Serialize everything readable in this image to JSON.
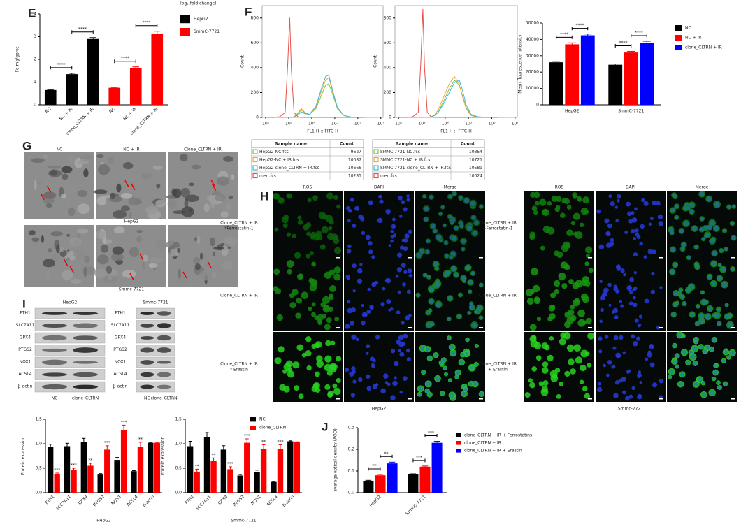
{
  "panel_letters": [
    "E",
    "F",
    "G",
    "H",
    "I",
    "J"
  ],
  "chart_data": [
    {
      "type": "bar",
      "note": "log₂(fold change)",
      "ylabel": "Fe mg/gprot",
      "categories": [
        "NC",
        "NC + IR",
        "clone_CLTRN + IR",
        "NC",
        "NC + IR",
        "clone_CLTRN + IR"
      ],
      "series": [
        {
          "name": "HepG2",
          "color": "#000000",
          "values": [
            0.65,
            1.35,
            2.9,
            null,
            null,
            null
          ],
          "errors": [
            0.02,
            0.04,
            0.06,
            null,
            null,
            null
          ]
        },
        {
          "name": "SmmC-7721",
          "color": "#ff0000",
          "values": [
            null,
            null,
            null,
            0.75,
            1.62,
            3.12
          ],
          "errors": [
            null,
            null,
            null,
            0.02,
            0.05,
            0.12
          ]
        }
      ],
      "ylim": [
        0,
        4
      ],
      "yticks": [
        0,
        1,
        2,
        3,
        4
      ],
      "legend": "right",
      "annotations": [
        "****",
        "****",
        "****",
        "****"
      ]
    },
    {
      "type": "line",
      "ylabel": "Count",
      "xlabel": "FL1-H :: FITC-H",
      "xscale": "log",
      "x": [
        100,
        200,
        400,
        700,
        900,
        1100,
        1300,
        1700,
        2500,
        3500,
        5000,
        8000,
        15000,
        25000,
        40000,
        55000,
        80000,
        130000,
        250000,
        600000,
        2000000
      ],
      "xlim": [
        70,
        12500000
      ],
      "xticks": [
        {
          "value": 100,
          "label": "10²"
        },
        {
          "value": 1000,
          "label": "10³"
        },
        {
          "value": 10000,
          "label": "10⁴"
        },
        {
          "value": 100000,
          "label": "10⁵"
        },
        {
          "value": 1000000,
          "label": "10⁶"
        },
        {
          "value": 10000000,
          "label": "10⁷"
        }
      ],
      "ylim": [
        0,
        900
      ],
      "yticks": [
        0,
        200,
        400,
        600,
        800
      ],
      "legend_headers": [
        "Sample name",
        "Count"
      ],
      "series": [
        {
          "name": "HepG2-NC.fcs",
          "count": 9627,
          "color": "#7cc242",
          "values": [
            0,
            0,
            0,
            0,
            0,
            0,
            0,
            5,
            35,
            70,
            40,
            25,
            70,
            170,
            260,
            270,
            190,
            70,
            15,
            0,
            0
          ]
        },
        {
          "name": "HepG2-NC + IR.fcs",
          "count": 10087,
          "color": "#f5a33c",
          "values": [
            0,
            0,
            0,
            0,
            0,
            0,
            0,
            5,
            30,
            60,
            35,
            25,
            80,
            200,
            300,
            320,
            210,
            80,
            15,
            0,
            0
          ]
        },
        {
          "name": "HepG2-clone_CLTRN + IR.fcs",
          "count": 10666,
          "color": "#41b8e0",
          "values": [
            0,
            0,
            0,
            0,
            0,
            0,
            0,
            3,
            20,
            45,
            30,
            25,
            90,
            220,
            330,
            340,
            220,
            80,
            15,
            0,
            0
          ]
        },
        {
          "name": "men.fcs",
          "count": 10285,
          "color": "#e8504a",
          "values": [
            0,
            0,
            5,
            40,
            420,
            800,
            380,
            40,
            5,
            0,
            0,
            0,
            0,
            0,
            0,
            0,
            0,
            0,
            0,
            0,
            0
          ]
        }
      ]
    },
    {
      "type": "line",
      "ylabel": "Count",
      "xlabel": "FL1-H :: FITC-H",
      "xscale": "log",
      "x": [
        100,
        200,
        400,
        700,
        900,
        1100,
        1300,
        1700,
        2500,
        3500,
        5000,
        8000,
        15000,
        25000,
        40000,
        55000,
        80000,
        130000,
        250000,
        600000,
        2000000
      ],
      "xlim": [
        70,
        12500000
      ],
      "xticks": [
        {
          "value": 100,
          "label": "10²"
        },
        {
          "value": 1000,
          "label": "10³"
        },
        {
          "value": 10000,
          "label": "10⁴"
        },
        {
          "value": 100000,
          "label": "10⁵"
        },
        {
          "value": 1000000,
          "label": "10⁶"
        },
        {
          "value": 10000000,
          "label": "10⁷"
        }
      ],
      "ylim": [
        0,
        900
      ],
      "yticks": [
        0,
        200,
        400,
        600,
        800
      ],
      "legend_headers": [
        "Sample name",
        "Count"
      ],
      "series": [
        {
          "name": "SMMC 7721-NC.fcs",
          "count": 10354,
          "color": "#7cc242",
          "values": [
            0,
            0,
            0,
            0,
            0,
            0,
            0,
            0,
            5,
            15,
            40,
            120,
            230,
            300,
            260,
            180,
            80,
            20,
            5,
            0,
            0
          ]
        },
        {
          "name": "SMMC 7721-NC + IR.fcs",
          "count": 10721,
          "color": "#f5a33c",
          "values": [
            0,
            0,
            0,
            0,
            0,
            0,
            0,
            0,
            5,
            20,
            60,
            150,
            270,
            330,
            270,
            170,
            70,
            15,
            0,
            0,
            0
          ]
        },
        {
          "name": "SMMC 7721-clone_CLTRN + IR.fcs",
          "count": 10589,
          "color": "#41b8e0",
          "values": [
            0,
            0,
            0,
            0,
            0,
            0,
            0,
            0,
            5,
            15,
            40,
            100,
            200,
            280,
            300,
            220,
            100,
            25,
            5,
            0,
            0
          ]
        },
        {
          "name": "men.fcs",
          "count": 10024,
          "color": "#e8504a",
          "values": [
            0,
            0,
            5,
            40,
            450,
            870,
            400,
            40,
            5,
            0,
            0,
            0,
            0,
            0,
            0,
            0,
            0,
            0,
            0,
            0,
            0
          ]
        }
      ]
    },
    {
      "type": "bar",
      "ylabel": "Mean fluorescence intensity",
      "categories": [
        "HepG2",
        "SmmC-7721"
      ],
      "series": [
        {
          "name": "NC",
          "color": "#000000",
          "values": [
            26000,
            24500
          ],
          "errors": [
            600,
            500
          ]
        },
        {
          "name": "NC + IR",
          "color": "#ff0000",
          "values": [
            37000,
            32000
          ],
          "errors": [
            900,
            700
          ]
        },
        {
          "name": "clone_CLTRN + IR",
          "color": "#0000ff",
          "values": [
            42500,
            38000
          ],
          "errors": [
            800,
            900
          ]
        }
      ],
      "ylim": [
        0,
        50000
      ],
      "yticks": [
        0,
        10000,
        20000,
        30000,
        40000,
        50000
      ],
      "legend": "right",
      "annotations": [
        "****",
        "****",
        "****",
        "****"
      ]
    },
    {
      "type": "bar",
      "ylabel": "Protein expression",
      "xlabel": "HepG2",
      "categories": [
        "FTH1",
        "SLC7A11",
        "GPX4",
        "PTGS2",
        "NOX1",
        "ACSL4",
        "β-actin"
      ],
      "series": [
        {
          "name": "NC",
          "color": "#000000",
          "values": [
            0.93,
            0.95,
            1.03,
            0.37,
            0.67,
            0.44,
            1.02
          ],
          "errors": [
            0.06,
            0.06,
            0.08,
            0.02,
            0.05,
            0.01,
            0.01
          ]
        },
        {
          "name": "clone_CLTRN",
          "color": "#ff0000",
          "values": [
            0.38,
            0.47,
            0.55,
            0.88,
            1.28,
            0.93,
            1.02
          ],
          "errors": [
            0.02,
            0.03,
            0.05,
            0.08,
            0.1,
            0.1,
            0.01
          ]
        }
      ],
      "ylim": [
        0,
        1.5
      ],
      "yticks": [
        {
          "value": 0,
          "label": "0.0"
        },
        0.5,
        {
          "value": 1,
          "label": "1.0"
        },
        1.5
      ],
      "legend": false,
      "annotations": [
        "***",
        "***",
        "**",
        "***",
        "***",
        "**"
      ]
    },
    {
      "type": "bar",
      "ylabel": "Protein expression",
      "xlabel": "Smmc-7721",
      "categories": [
        "FTH1",
        "SLC7A11",
        "GPX4",
        "PTGS2",
        "NOX1",
        "ACSL4",
        "β-actin"
      ],
      "series": [
        {
          "name": "NC",
          "color": "#000000",
          "values": [
            0.95,
            1.13,
            0.88,
            0.35,
            0.42,
            0.22,
            1.05
          ],
          "errors": [
            0.1,
            0.1,
            0.08,
            0.02,
            0.04,
            0.01,
            0.01
          ]
        },
        {
          "name": "clone_CLTRN",
          "color": "#ff0000",
          "values": [
            0.43,
            0.65,
            0.48,
            1.02,
            0.9,
            0.9,
            1.03
          ],
          "errors": [
            0.05,
            0.06,
            0.05,
            0.08,
            0.08,
            0.08,
            0.01
          ]
        }
      ],
      "ylim": [
        0,
        1.5
      ],
      "yticks": [
        {
          "value": 0,
          "label": "0.0"
        },
        0.5,
        {
          "value": 1,
          "label": "1.0"
        },
        1.5
      ],
      "legend": "upper right",
      "annotations": [
        "**",
        "**",
        "***",
        "***",
        "**",
        "***"
      ]
    },
    {
      "type": "bar",
      "ylabel": "average optical density (AOD)",
      "categories": [
        "HepG2",
        "SmmC-7721"
      ],
      "series": [
        {
          "name": "clone_CLTRN + IR + Ferrostatins-",
          "color": "#000000",
          "values": [
            0.055,
            0.085
          ],
          "errors": [
            0.002,
            0.002
          ]
        },
        {
          "name": "clone_CLTRN + IR",
          "color": "#ff0000",
          "values": [
            0.08,
            0.12
          ],
          "errors": [
            0.004,
            0.003
          ]
        },
        {
          "name": "clone_CLTRN + IR + Erastin",
          "color": "#0000ff",
          "values": [
            0.135,
            0.23
          ],
          "errors": [
            0.006,
            0.007
          ]
        }
      ],
      "ylim": [
        0,
        0.3
      ],
      "yticks": [
        {
          "value": 0,
          "label": "0.0"
        },
        0.1,
        0.2,
        0.3
      ],
      "legend": "right",
      "annotations": [
        "**",
        "**",
        "***",
        "***"
      ]
    }
  ],
  "em": {
    "columns": [
      "NC",
      "NC + IR",
      "Clone_CLTRN + IR"
    ],
    "rows": [
      "HepG2",
      "Smmc-7721"
    ]
  },
  "fluorescence": {
    "groups": [
      {
        "name": "HepG2",
        "columns": [
          "ROS",
          "DAPI",
          "Merge"
        ],
        "rows": [
          [
            "Clone_CLTRN + IR",
            "*Ferrostatin-1"
          ],
          [
            "Clone_CLTRN + IR"
          ],
          [
            "Clone_CLTRN + IR",
            "* Erastin"
          ]
        ]
      },
      {
        "name": "Smmc-7721",
        "columns": [
          "ROS",
          "DAPI",
          "Merge"
        ],
        "rows": [
          [
            "Clone_CLTRN + IR",
            "+Ferrostatin-1"
          ],
          [
            "Clone_CLTRN + IR"
          ],
          [
            "Clone_CLTRN + IR",
            "+ Erastin"
          ]
        ]
      }
    ]
  },
  "western": {
    "blots": [
      {
        "title": "HepG2",
        "proteins": [
          "FTH1",
          "SLC7A11",
          "GPX4",
          "PTGS2",
          "NOX1",
          "ACSL4",
          "β-actin"
        ],
        "lanes": [
          "NC",
          "clone_CLTRN"
        ]
      },
      {
        "title": "Smmc-7721",
        "proteins": [
          "FTH1",
          "SLC7A11",
          "GPX4",
          "PTGS2",
          "NOX1",
          "ACSL4",
          "β-actin"
        ],
        "lanes": [
          "NC",
          "clone_CLTRN"
        ]
      }
    ]
  }
}
